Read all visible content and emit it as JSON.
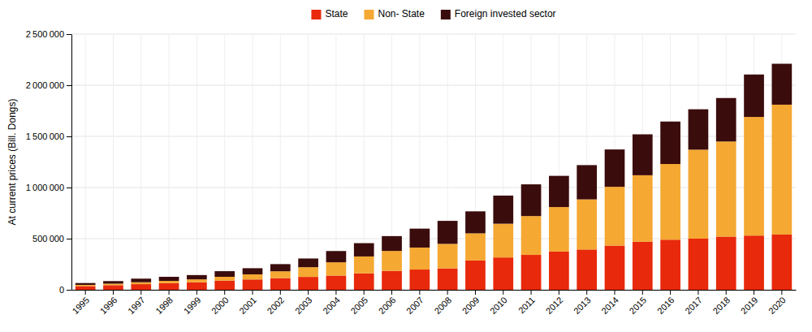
{
  "chart_data": {
    "type": "bar",
    "stacked": true,
    "ylabel": "At current prices (Bill. Dongs)",
    "categories": [
      "1995",
      "1996",
      "1997",
      "1998",
      "1999",
      "2000",
      "2001",
      "2002",
      "2003",
      "2004",
      "2005",
      "2006",
      "2007",
      "2008",
      "2009",
      "2010",
      "2011",
      "2012",
      "2013",
      "2014",
      "2015",
      "2016",
      "2017",
      "2018",
      "2019",
      "2020"
    ],
    "series": [
      {
        "name": "State",
        "color": "#e8290b",
        "values": [
          36000,
          45000,
          55000,
          65000,
          74000,
          90000,
          101000,
          114000,
          126000,
          139000,
          161000,
          185000,
          198000,
          209000,
          287000,
          316000,
          341000,
          374000,
          394000,
          432000,
          470000,
          490000,
          500000,
          520000,
          530000,
          540000
        ]
      },
      {
        "name": "Non- State",
        "color": "#f5a832",
        "values": [
          12000,
          15000,
          19000,
          22000,
          28000,
          37000,
          50000,
          67000,
          95000,
          130000,
          165000,
          195000,
          215000,
          240000,
          265000,
          330000,
          380000,
          435000,
          490000,
          575000,
          650000,
          740000,
          870000,
          930000,
          1160000,
          1270000
        ]
      },
      {
        "name": "Foreign invested sector",
        "color": "#3b0c0c",
        "values": [
          18000,
          25000,
          35000,
          40000,
          42000,
          55000,
          60000,
          70000,
          85000,
          110000,
          130000,
          145000,
          185000,
          225000,
          215000,
          275000,
          310000,
          305000,
          335000,
          365000,
          400000,
          415000,
          395000,
          425000,
          415000,
          400000
        ]
      }
    ],
    "ylim": [
      0,
      2500000
    ],
    "yticks": [
      0,
      {
        "value": 500000,
        "label": "500 000"
      },
      {
        "value": 1000000,
        "label": "1 000 000"
      },
      {
        "value": 1500000,
        "label": "1 500 000"
      },
      {
        "value": 2000000,
        "label": "2 000 000"
      },
      {
        "value": 2500000,
        "label": "2 500 000"
      }
    ],
    "grid": true,
    "legend": "top"
  }
}
